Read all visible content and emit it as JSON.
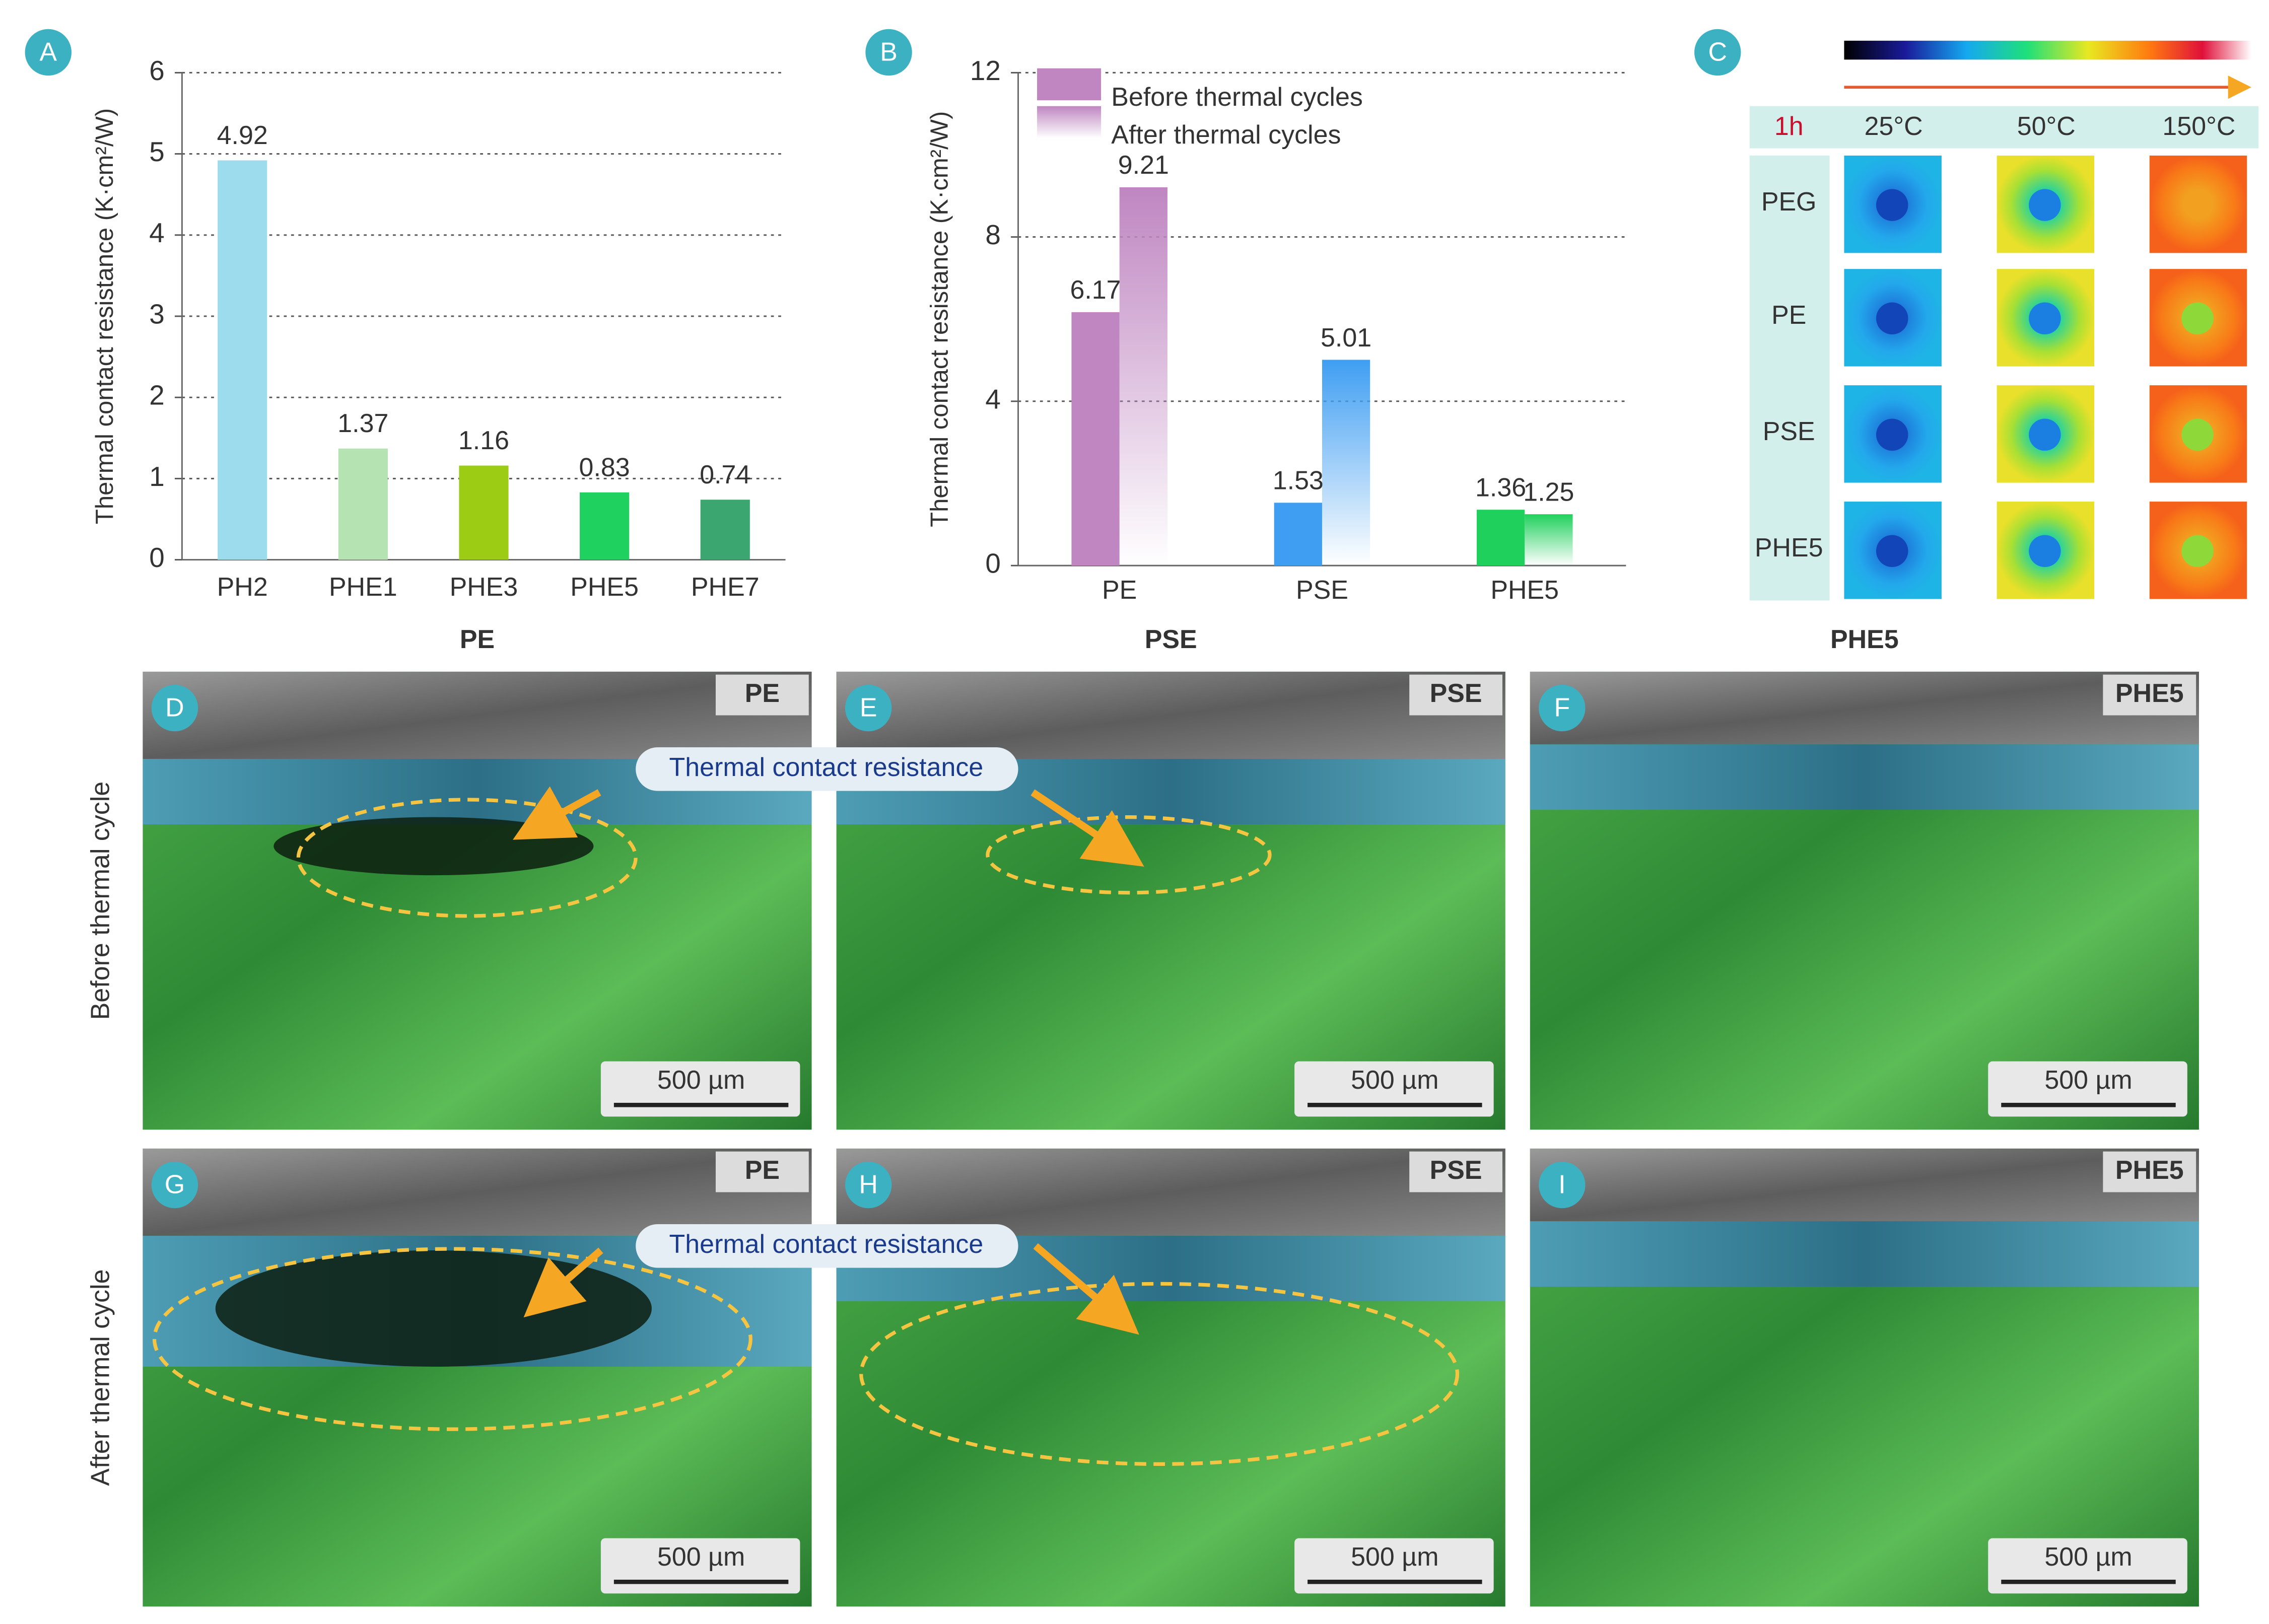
{
  "chart_data": [
    {
      "type": "bar",
      "panel_label": "A",
      "y_label": "Thermal contact resistance (K·cm²/W)",
      "categories": [
        "PH2",
        "PHE1",
        "PHE3",
        "PHE5",
        "PHE7"
      ],
      "values": [
        4.92,
        1.37,
        1.16,
        0.83,
        0.74
      ],
      "colors": [
        "#9ddcec",
        "#b6e3b2",
        "#9dcc14",
        "#1fd15f",
        "#3ba66f"
      ],
      "ylim": [
        0,
        6
      ],
      "yticks": [
        0,
        1,
        2,
        3,
        4,
        5,
        6
      ],
      "grid": true
    },
    {
      "type": "grouped_bar",
      "panel_label": "B",
      "y_label": "Thermal contact resistance (K·cm²/W)",
      "categories": [
        "PE",
        "PSE",
        "PHE5"
      ],
      "colors": [
        "#bf86c1",
        "#3f9ef2",
        "#20d05c"
      ],
      "series": [
        {
          "name": "Before thermal cycles",
          "fill": "solid",
          "values": [
            6.17,
            1.53,
            1.36
          ]
        },
        {
          "name": "After thermal cycles",
          "fill": "gradient",
          "values": [
            9.21,
            5.01,
            1.25
          ]
        }
      ],
      "ylim": [
        0,
        12
      ],
      "yticks": [
        0,
        4,
        8,
        12
      ],
      "grid": true,
      "legend": "top-left"
    }
  ],
  "thermal": {
    "panel_label": "C",
    "time": "1h",
    "temperatures": [
      "25°C",
      "50°C",
      "150°C"
    ],
    "samples": [
      "PEG",
      "PE",
      "PSE",
      "PHE5"
    ]
  },
  "sem": {
    "column_titles": [
      "PE",
      "PSE",
      "PHE5"
    ],
    "row_titles": [
      "Before thermal cycle",
      "After thermal cycle"
    ],
    "panels": [
      {
        "label": "D",
        "tag": "PE",
        "scale_bar": "500 µm",
        "annotation": "Thermal contact resistance"
      },
      {
        "label": "E",
        "tag": "PSE",
        "scale_bar": "500 µm"
      },
      {
        "label": "F",
        "tag": "PHE5",
        "scale_bar": "500 µm"
      },
      {
        "label": "G",
        "tag": "PE",
        "scale_bar": "500 µm",
        "annotation": "Thermal contact resistance"
      },
      {
        "label": "H",
        "tag": "PSE",
        "scale_bar": "500 µm"
      },
      {
        "label": "I",
        "tag": "PHE5",
        "scale_bar": "500 µm"
      }
    ]
  }
}
